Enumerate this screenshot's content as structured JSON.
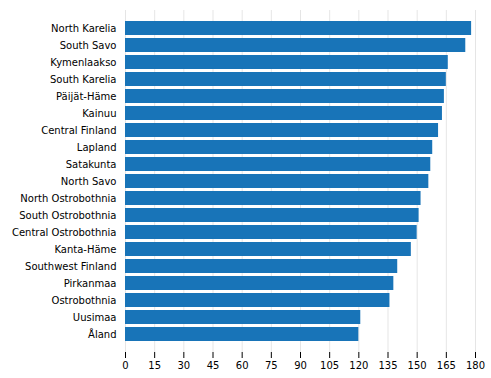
{
  "chart_data": {
    "type": "bar",
    "orientation": "horizontal",
    "categories": [
      "North Karelia",
      "South Savo",
      "Kymenlaakso",
      "South Karelia",
      "Päijät-Häme",
      "Kainuu",
      "Central Finland",
      "Lapland",
      "Satakunta",
      "North Savo",
      "North Ostrobothnia",
      "South Ostrobothnia",
      "Central Ostrobothnia",
      "Kanta-Häme",
      "Southwest Finland",
      "Pirkanmaa",
      "Ostrobothnia",
      "Uusimaa",
      "Åland"
    ],
    "values": [
      178,
      175,
      166,
      165,
      164,
      163,
      161,
      158,
      157,
      156,
      152,
      151,
      150,
      147,
      140,
      138,
      136,
      121,
      120
    ],
    "color": "#1874b8",
    "xlim": [
      0,
      180
    ],
    "xticks": [
      0,
      15,
      30,
      45,
      60,
      75,
      90,
      105,
      120,
      135,
      150,
      165,
      180
    ],
    "grid": true
  }
}
